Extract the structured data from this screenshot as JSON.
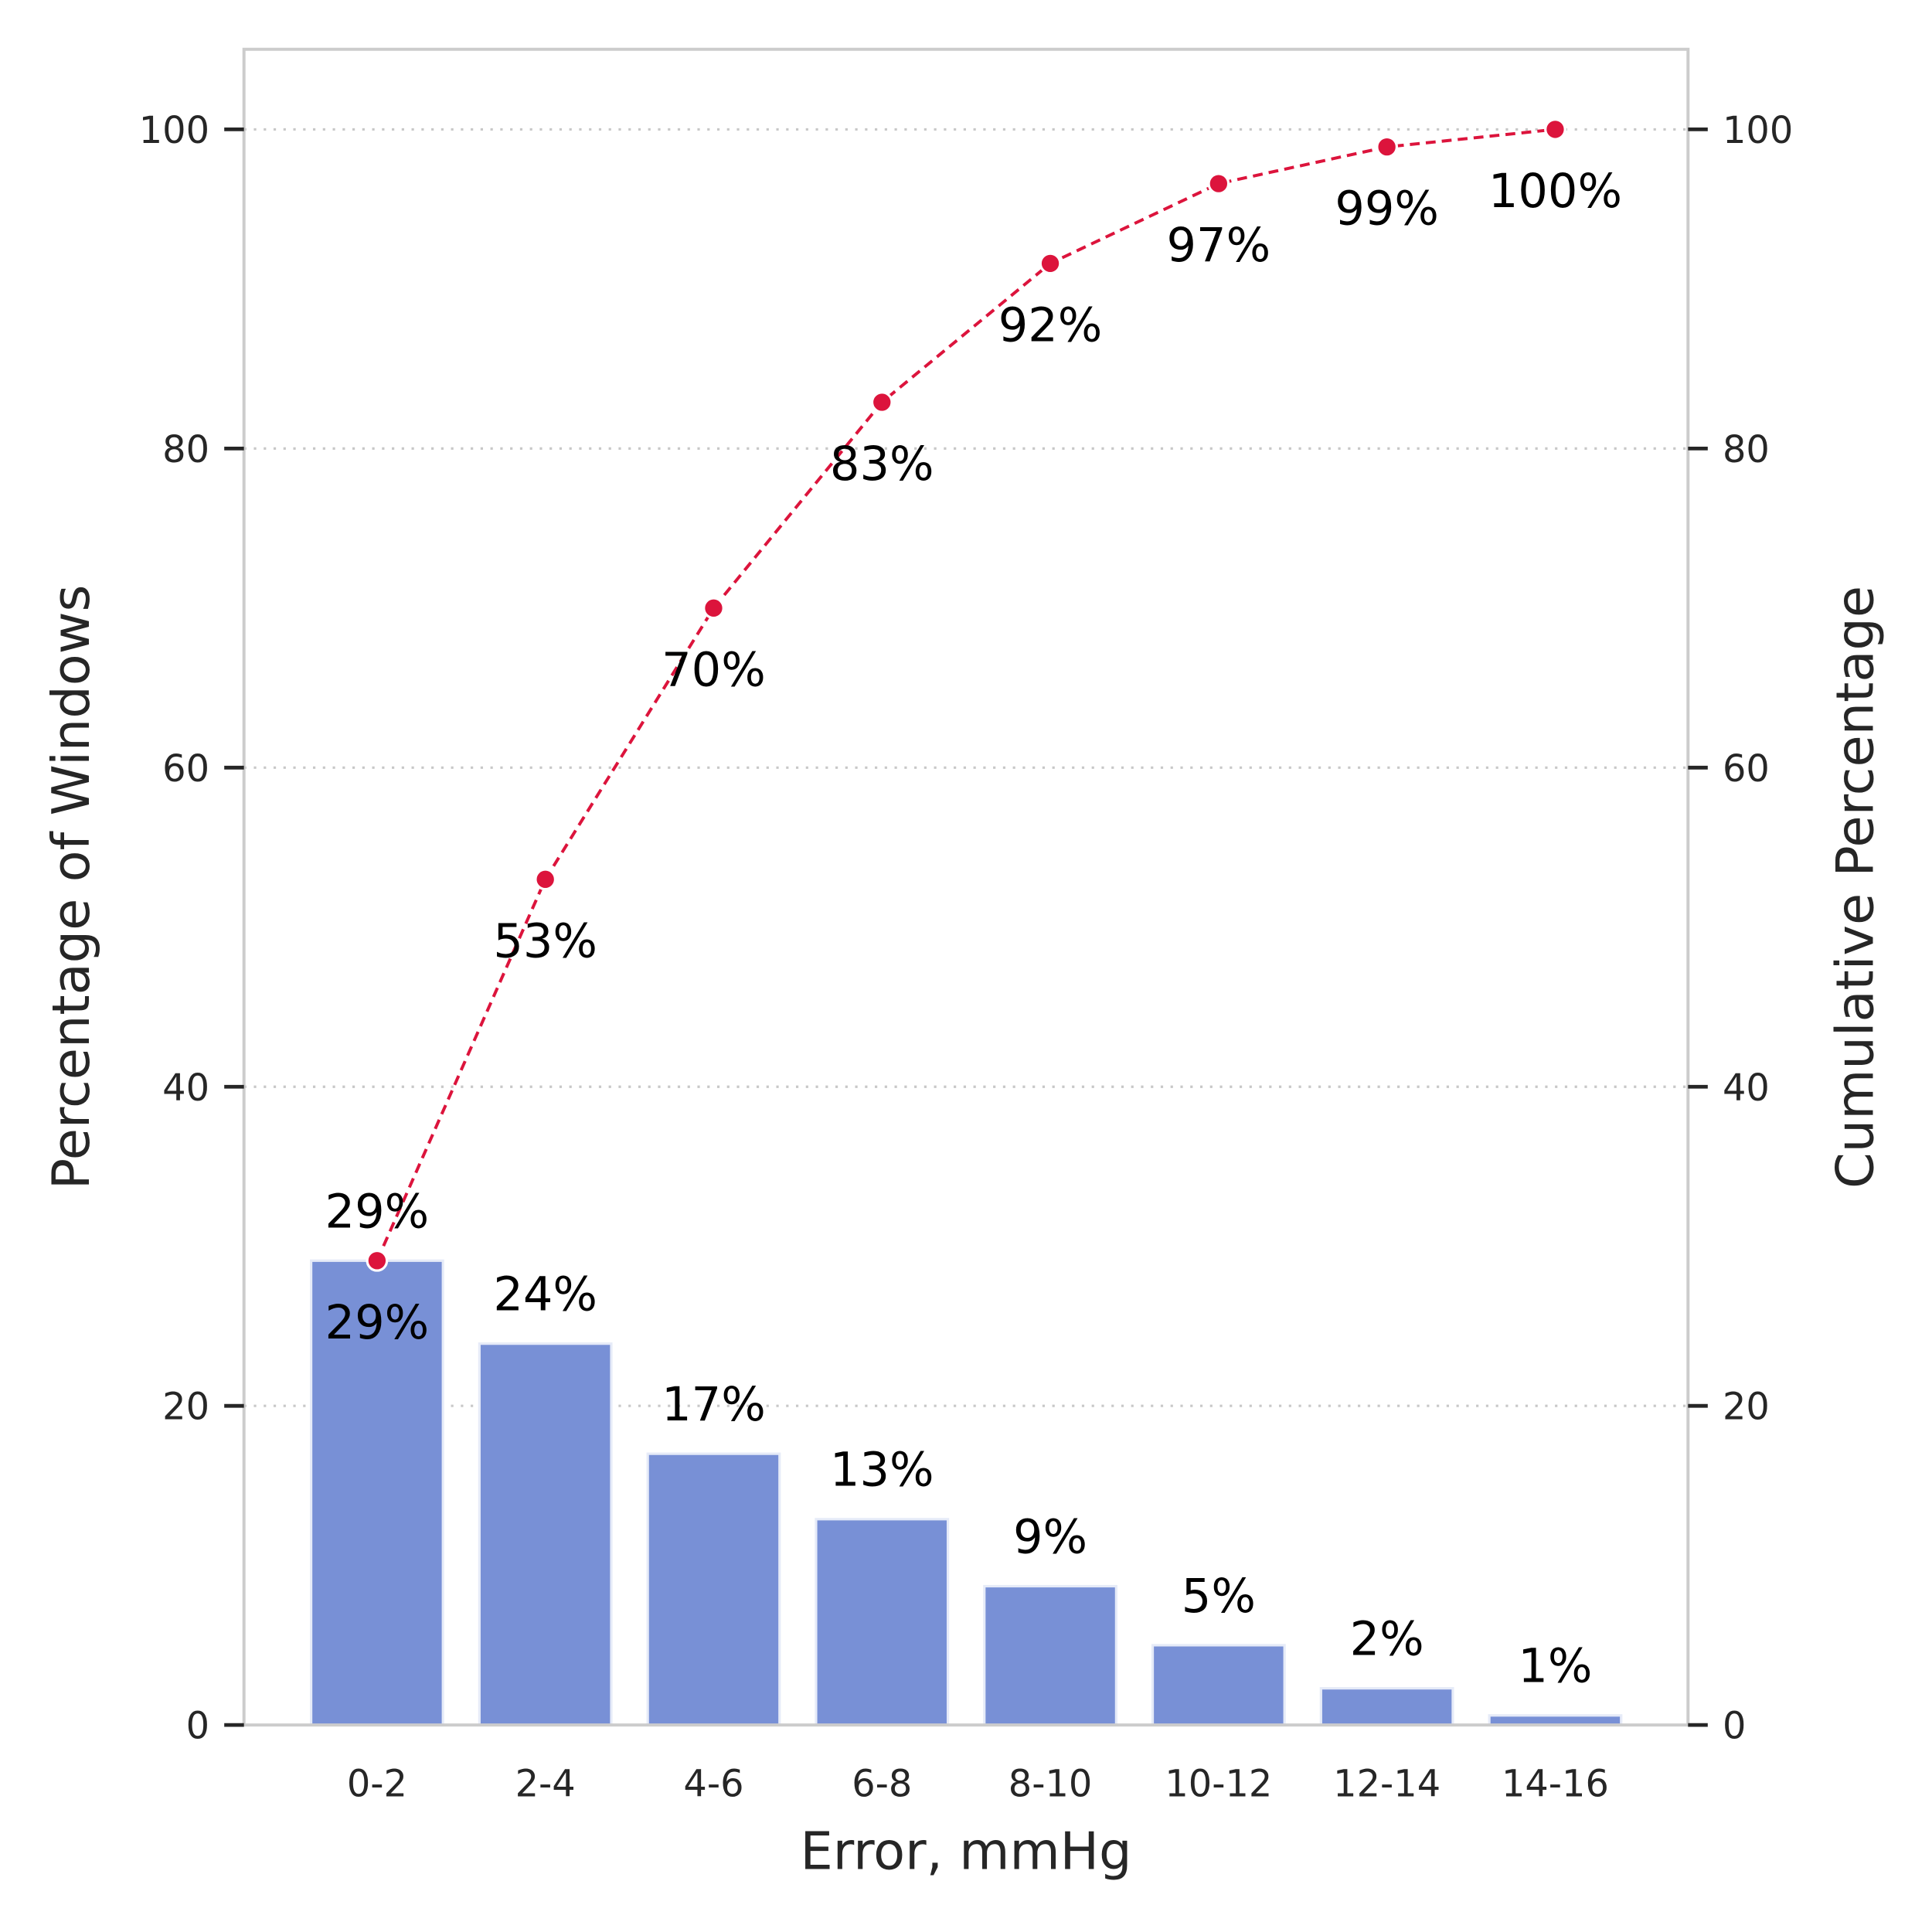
{
  "chart_data": {
    "type": "bar",
    "xlabel": "Error, mmHg",
    "ylabel": "Percentage of Windows",
    "y2label": "Cumulative Percentage",
    "categories": [
      "0-2",
      "2-4",
      "4-6",
      "6-8",
      "8-10",
      "10-12",
      "12-14",
      "14-16"
    ],
    "series": [
      {
        "type": "bar",
        "values": [
          29.1,
          23.9,
          17.0,
          12.9,
          8.7,
          5.0,
          2.3,
          0.6
        ],
        "labels": [
          "29%",
          "24%",
          "17%",
          "13%",
          "9%",
          "5%",
          "2%",
          "1%"
        ],
        "color": "#7890d6"
      },
      {
        "type": "line",
        "axis": "right",
        "values": [
          29.1,
          53.0,
          70.0,
          82.9,
          91.6,
          96.6,
          98.9,
          100.0
        ],
        "labels": [
          "29%",
          "53%",
          "70%",
          "83%",
          "92%",
          "97%",
          "99%",
          "100%"
        ],
        "color": "#dc143c",
        "linestyle": "dashed",
        "marker": "circle"
      }
    ],
    "ylim": [
      0,
      105
    ],
    "y2lim": [
      0,
      105
    ],
    "yticks": [
      "0",
      "20",
      "40",
      "60",
      "80",
      "100"
    ],
    "y2ticks": [
      "0",
      "20",
      "40",
      "60",
      "80",
      "100"
    ],
    "grid": "horizontal dotted"
  }
}
